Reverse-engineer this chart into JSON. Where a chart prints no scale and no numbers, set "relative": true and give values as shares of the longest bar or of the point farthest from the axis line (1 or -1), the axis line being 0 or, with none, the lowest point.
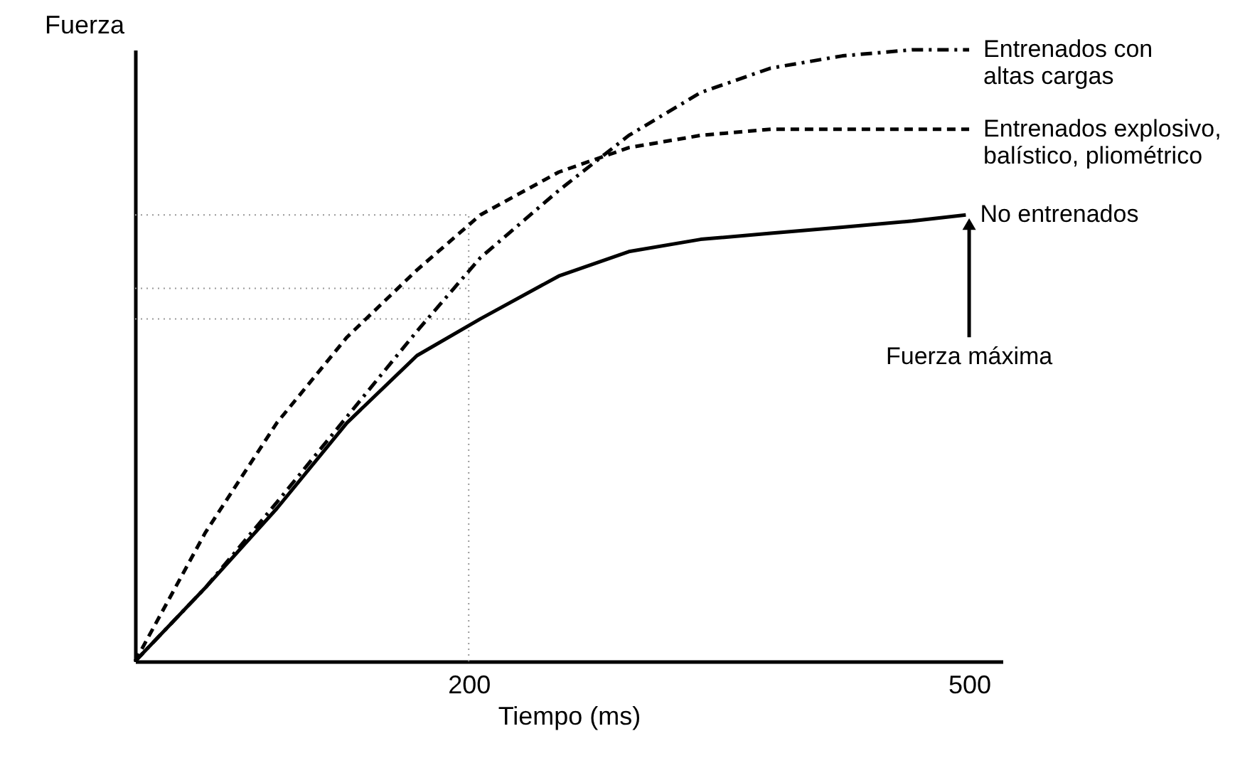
{
  "chart_data": {
    "type": "line",
    "relative": true,
    "xlabel": "Tiempo (ms)",
    "ylabel": "Fuerza",
    "xlim": [
      0,
      520
    ],
    "xticks": [
      200,
      500
    ],
    "tick_labels": "x",
    "grid": false,
    "marker": "none",
    "series": [
      {
        "name": "No entrenados",
        "color": "#000000",
        "line_style": "solid",
        "x": [
          0,
          42,
          85,
          127,
          169,
          207,
          254,
          296,
          339,
          381,
          424,
          466,
          498
        ],
        "values": [
          0,
          0.12,
          0.25,
          0.39,
          0.5,
          0.56,
          0.63,
          0.67,
          0.69,
          0.7,
          0.71,
          0.72,
          0.73
        ]
      },
      {
        "name": "Entrenados explosivo,\nbalístico, pliométrico",
        "color": "#000000",
        "line_style": "dashed",
        "x": [
          0,
          42,
          85,
          127,
          169,
          207,
          254,
          296,
          339,
          381,
          424,
          500
        ],
        "values": [
          0,
          0.21,
          0.39,
          0.53,
          0.64,
          0.73,
          0.8,
          0.84,
          0.86,
          0.87,
          0.87,
          0.87
        ]
      },
      {
        "name": "Entrenados con\naltas cargas",
        "color": "#000000",
        "line_style": "dashdot",
        "x": [
          0,
          42,
          85,
          127,
          169,
          207,
          254,
          296,
          339,
          381,
          424,
          466,
          500
        ],
        "values": [
          0,
          0.12,
          0.26,
          0.4,
          0.54,
          0.66,
          0.77,
          0.86,
          0.93,
          0.97,
          0.99,
          1.0,
          1.0
        ]
      }
    ],
    "ref_lines": [
      {
        "axis": "x",
        "value": 200,
        "color": "#999999",
        "line_style": "dotted"
      },
      {
        "axis": "y",
        "value": 0.73,
        "color": "#999999",
        "line_style": "dotted"
      },
      {
        "axis": "y",
        "value": 0.61,
        "color": "#999999",
        "line_style": "dotted"
      },
      {
        "axis": "y",
        "value": 0.56,
        "color": "#999999",
        "line_style": "dotted"
      }
    ],
    "annotations": [
      {
        "text": "Fuerza máxima",
        "x": 500,
        "y": 0.73
      }
    ]
  }
}
